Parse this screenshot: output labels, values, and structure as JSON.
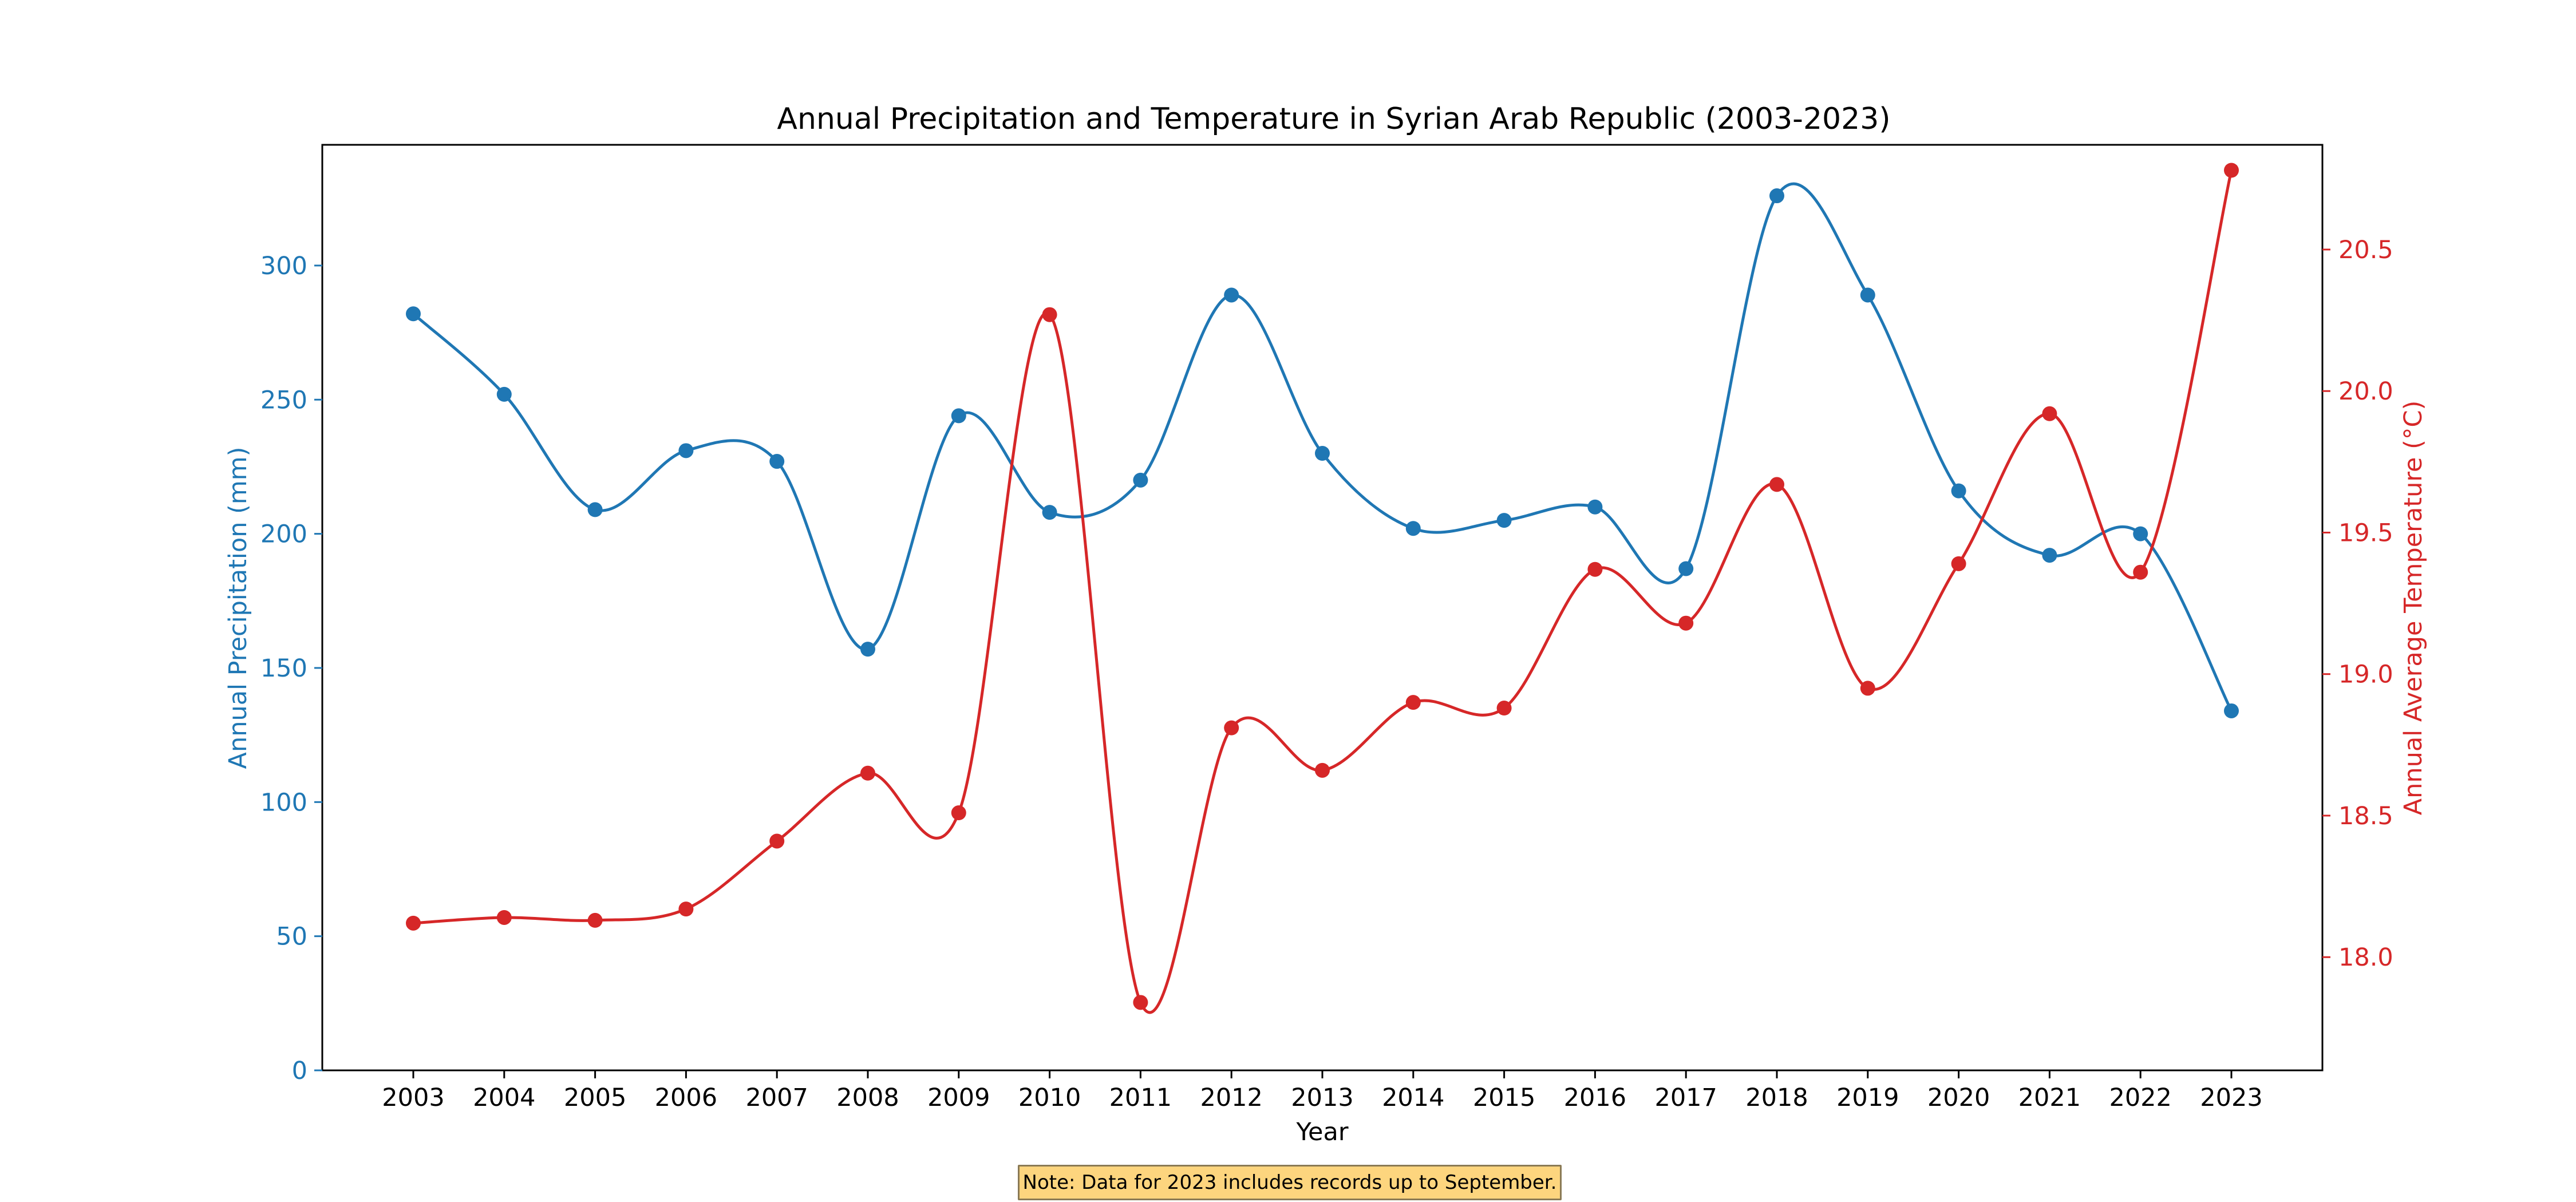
{
  "chart_data": {
    "type": "line",
    "title": "Annual Precipitation and Temperature in Syrian Arab Republic (2003-2023)",
    "xlabel": "Year",
    "categories": [
      "2003",
      "2004",
      "2005",
      "2006",
      "2007",
      "2008",
      "2009",
      "2010",
      "2011",
      "2012",
      "2013",
      "2014",
      "2015",
      "2016",
      "2017",
      "2018",
      "2019",
      "2020",
      "2021",
      "2022",
      "2023"
    ],
    "series": [
      {
        "axis": "left",
        "ylabel": "Annual Precipitation (mm)",
        "color": "#1f77b4",
        "values": [
          282,
          252,
          209,
          231,
          227,
          157,
          244,
          208,
          220,
          289,
          230,
          202,
          205,
          210,
          187,
          326,
          289,
          216,
          192,
          200,
          134
        ],
        "ylim": [
          0,
          345
        ],
        "ticks": [
          0,
          50,
          100,
          150,
          200,
          250,
          300
        ]
      },
      {
        "axis": "right",
        "ylabel": "Annual Average Temperature (°C)",
        "color": "#d62728",
        "values": [
          18.12,
          18.14,
          18.13,
          18.17,
          18.41,
          18.65,
          18.51,
          20.27,
          17.84,
          18.81,
          18.66,
          18.9,
          18.88,
          19.37,
          19.18,
          19.67,
          18.95,
          19.39,
          19.92,
          19.36,
          20.78
        ],
        "ylim": [
          17.6,
          20.87
        ],
        "ticks": [
          "18.0",
          "18.5",
          "19.0",
          "19.5",
          "20.0",
          "20.5"
        ]
      }
    ],
    "grid": false,
    "note": "Note: Data for 2023 includes records up to September."
  }
}
